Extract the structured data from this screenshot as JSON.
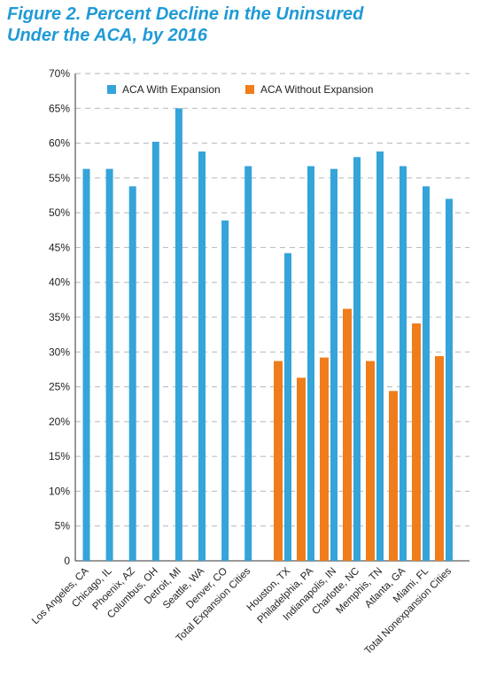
{
  "figure": {
    "title_line1": "Figure 2. Percent Decline in the Uninsured",
    "title_line2": "Under the ACA, by 2016"
  },
  "colors": {
    "with_expansion": "#35a4d9",
    "without_expansion": "#f07d1b",
    "grid": "#b5b5b5",
    "axis": "#333333"
  },
  "chart_data": {
    "type": "bar",
    "title": "Figure 2. Percent Decline in the Uninsured Under the ACA, by 2016",
    "xlabel": "",
    "ylabel": "",
    "ylim": [
      0,
      70
    ],
    "y_ticks": [
      "0",
      "5%",
      "10%",
      "15%",
      "20%",
      "25%",
      "30%",
      "35%",
      "40%",
      "45%",
      "50%",
      "55%",
      "60%",
      "65%",
      "70%"
    ],
    "grid": true,
    "legend_position": "top",
    "categories": [
      "Los Angeles, CA",
      "Chicago, IL",
      "Phoenix, AZ",
      "Columbus, OH",
      "Detroit, MI",
      "Seattle, WA",
      "Denver, CO",
      "Total Expansion Cities",
      "Houston, TX",
      "Philadelphia, PA",
      "Indianapolis, IN",
      "Charlotte, NC",
      "Memphis, TN",
      "Atlanta, GA",
      "Miami, FL",
      "Total Nonexpansion Cities"
    ],
    "series": [
      {
        "name": "ACA With Expansion",
        "values": [
          56.3,
          56.3,
          53.8,
          60.2,
          65.0,
          58.8,
          48.9,
          56.7,
          44.2,
          56.7,
          56.3,
          58.0,
          58.8,
          56.7,
          53.8,
          52.0
        ]
      },
      {
        "name": "ACA Without Expansion",
        "values": [
          null,
          null,
          null,
          null,
          null,
          null,
          null,
          null,
          28.7,
          26.3,
          29.2,
          36.2,
          28.7,
          24.4,
          34.1,
          29.4
        ]
      }
    ]
  }
}
